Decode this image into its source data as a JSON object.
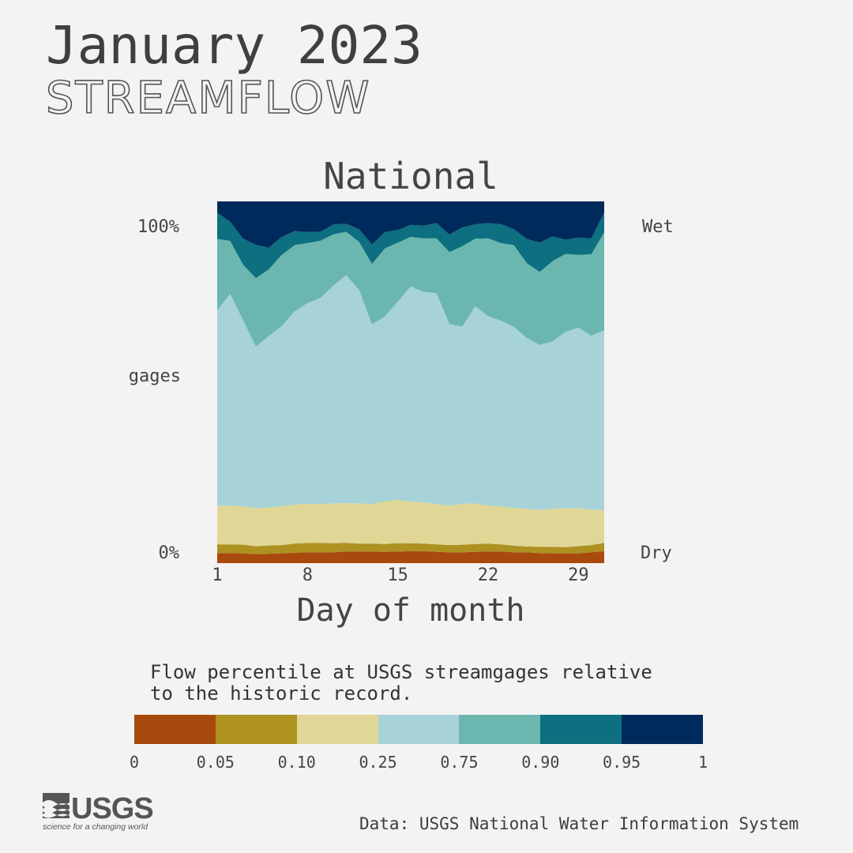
{
  "title": "January 2023",
  "subtitle": "STREAMFLOW",
  "description": "Flow percentile at USGS streamgages relative\nto the historic record.",
  "source": "Data: USGS National Water Information System",
  "logo": {
    "text": "USGS",
    "tagline": "science for a changing world"
  },
  "chart_data": {
    "type": "area",
    "stacked": true,
    "normalized": true,
    "title": "National",
    "xlabel": "Day of month",
    "ylabel": "gages",
    "y_tick_labels": [
      "0%",
      "100%"
    ],
    "y_end_labels": {
      "top": "Wet",
      "bottom": "Dry"
    },
    "x_ticks": [
      1,
      8,
      15,
      22,
      29
    ],
    "xlim": [
      1,
      31
    ],
    "ylim": [
      0,
      1
    ],
    "grid": false,
    "x": [
      1,
      2,
      3,
      4,
      5,
      6,
      7,
      8,
      9,
      10,
      11,
      12,
      13,
      14,
      15,
      16,
      17,
      18,
      19,
      20,
      21,
      22,
      23,
      24,
      25,
      26,
      27,
      28,
      29,
      30,
      31
    ],
    "series": [
      {
        "name": "0-0.05",
        "color": "#a84a0d",
        "values": [
          0.028,
          0.028,
          0.027,
          0.025,
          0.026,
          0.027,
          0.029,
          0.03,
          0.03,
          0.03,
          0.032,
          0.032,
          0.032,
          0.031,
          0.032,
          0.033,
          0.033,
          0.031,
          0.03,
          0.03,
          0.031,
          0.032,
          0.032,
          0.03,
          0.03,
          0.028,
          0.027,
          0.027,
          0.027,
          0.03,
          0.033
        ]
      },
      {
        "name": "0.05-0.10",
        "color": "#ad9121",
        "values": [
          0.024,
          0.024,
          0.024,
          0.022,
          0.023,
          0.023,
          0.025,
          0.026,
          0.026,
          0.025,
          0.024,
          0.022,
          0.022,
          0.022,
          0.023,
          0.022,
          0.021,
          0.021,
          0.02,
          0.021,
          0.022,
          0.022,
          0.02,
          0.018,
          0.016,
          0.017,
          0.018,
          0.017,
          0.02,
          0.02,
          0.023
        ]
      },
      {
        "name": "0.10-0.25",
        "color": "#e0d797",
        "values": [
          0.107,
          0.107,
          0.106,
          0.105,
          0.105,
          0.107,
          0.108,
          0.108,
          0.107,
          0.11,
          0.11,
          0.111,
          0.109,
          0.118,
          0.12,
          0.115,
          0.114,
          0.112,
          0.109,
          0.113,
          0.112,
          0.105,
          0.105,
          0.104,
          0.104,
          0.102,
          0.105,
          0.108,
          0.104,
          0.098,
          0.091
        ]
      },
      {
        "name": "0.25-0.75",
        "color": "#a7d2d8",
        "values": [
          0.54,
          0.585,
          0.515,
          0.447,
          0.474,
          0.498,
          0.534,
          0.555,
          0.57,
          0.602,
          0.63,
          0.59,
          0.497,
          0.511,
          0.548,
          0.595,
          0.582,
          0.582,
          0.502,
          0.49,
          0.545,
          0.524,
          0.513,
          0.501,
          0.472,
          0.456,
          0.463,
          0.487,
          0.5,
          0.48,
          0.497
        ]
      },
      {
        "name": "0.75-0.90",
        "color": "#6bb7af",
        "values": [
          0.197,
          0.147,
          0.153,
          0.189,
          0.184,
          0.197,
          0.183,
          0.166,
          0.158,
          0.142,
          0.12,
          0.133,
          0.167,
          0.188,
          0.163,
          0.137,
          0.148,
          0.152,
          0.199,
          0.222,
          0.187,
          0.215,
          0.215,
          0.226,
          0.207,
          0.202,
          0.222,
          0.216,
          0.201,
          0.226,
          0.27
        ]
      },
      {
        "name": "0.90-0.95",
        "color": "#0d6f7f",
        "values": [
          0.073,
          0.053,
          0.072,
          0.092,
          0.06,
          0.05,
          0.039,
          0.03,
          0.025,
          0.027,
          0.022,
          0.035,
          0.054,
          0.045,
          0.035,
          0.033,
          0.035,
          0.042,
          0.048,
          0.052,
          0.04,
          0.042,
          0.052,
          0.044,
          0.067,
          0.081,
          0.068,
          0.039,
          0.048,
          0.044,
          0.055
        ]
      },
      {
        "name": "0.95-1",
        "color": "#002a5c",
        "values": [
          0.031,
          0.056,
          0.103,
          0.12,
          0.128,
          0.098,
          0.082,
          0.085,
          0.084,
          0.064,
          0.062,
          0.077,
          0.119,
          0.085,
          0.079,
          0.065,
          0.067,
          0.06,
          0.092,
          0.072,
          0.063,
          0.06,
          0.063,
          0.077,
          0.104,
          0.114,
          0.097,
          0.106,
          0.1,
          0.102,
          0.031
        ]
      }
    ],
    "legend": {
      "breaks": [
        "0",
        "0.05",
        "0.10",
        "0.25",
        "0.75",
        "0.90",
        "0.95",
        "1"
      ],
      "colors": [
        "#a84a0d",
        "#ad9121",
        "#e0d797",
        "#a7d2d8",
        "#6bb7af",
        "#0d6f7f",
        "#002a5c"
      ]
    }
  }
}
